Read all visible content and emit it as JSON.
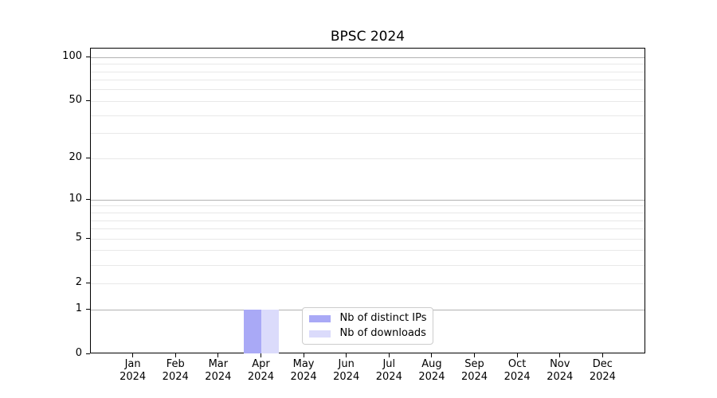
{
  "chart_data": {
    "type": "bar",
    "title": "BPSC 2024",
    "categories": [
      "Jan 2024",
      "Feb 2024",
      "Mar 2024",
      "Apr 2024",
      "May 2024",
      "Jun 2024",
      "Jul 2024",
      "Aug 2024",
      "Sep 2024",
      "Oct 2024",
      "Nov 2024",
      "Dec 2024"
    ],
    "series": [
      {
        "name": "Nb of distinct IPs",
        "color": "#a9a9f6",
        "values": [
          0,
          0,
          0,
          1,
          0,
          0,
          0,
          0,
          0,
          0,
          0,
          0
        ]
      },
      {
        "name": "Nb of downloads",
        "color": "#dbdbfb",
        "values": [
          0,
          0,
          0,
          1,
          0,
          0,
          0,
          0,
          0,
          0,
          0,
          0
        ]
      }
    ],
    "xlabel": "",
    "ylabel": "",
    "y_scale": "log1p",
    "ylim": [
      0,
      115
    ],
    "y_ticks": [
      0,
      1,
      2,
      5,
      10,
      20,
      50,
      100
    ],
    "y_major_gridlines": [
      1,
      10,
      100
    ],
    "y_minor_gridlines": [
      2,
      3,
      4,
      5,
      6,
      7,
      8,
      9,
      20,
      30,
      40,
      50,
      60,
      70,
      80,
      90
    ],
    "grid": "on",
    "legend_position": "lower center",
    "colors": {
      "axis": "#000000",
      "grid_major": "#b2b2b2",
      "grid_minor": "#e8e8e8",
      "background": "#ffffff"
    }
  }
}
